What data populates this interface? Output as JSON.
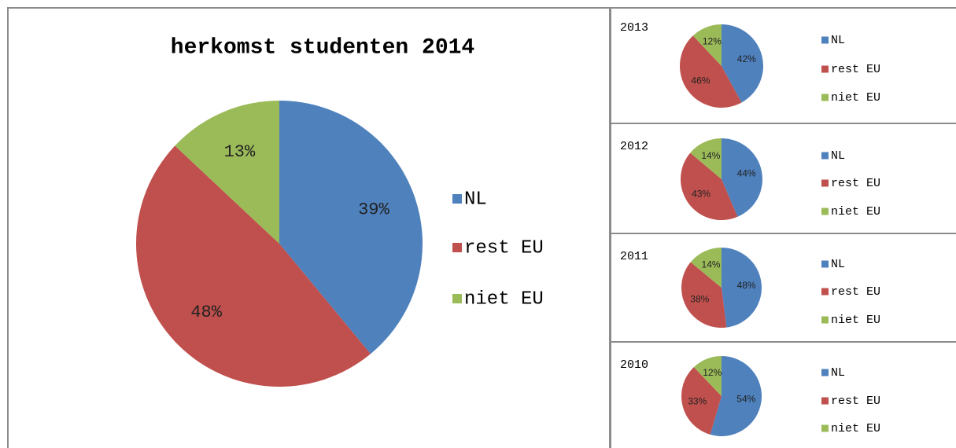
{
  "chart_data": [
    {
      "type": "pie",
      "title": "herkomst studenten 2014",
      "categories": [
        "NL",
        "rest EU",
        "niet EU"
      ],
      "values": [
        39,
        48,
        13
      ],
      "value_labels": [
        "39%",
        "48%",
        "13%"
      ],
      "colors": [
        "#4f81bd",
        "#c0504d",
        "#9bbb59"
      ]
    },
    {
      "type": "pie",
      "title": "2013",
      "categories": [
        "NL",
        "rest EU",
        "niet EU"
      ],
      "values": [
        42,
        46,
        12
      ],
      "value_labels": [
        "42%",
        "46%",
        "12%"
      ],
      "colors": [
        "#4f81bd",
        "#c0504d",
        "#9bbb59"
      ]
    },
    {
      "type": "pie",
      "title": "2012",
      "categories": [
        "NL",
        "rest EU",
        "niet EU"
      ],
      "values": [
        44,
        43,
        14
      ],
      "value_labels": [
        "44%",
        "43%",
        "14%"
      ],
      "colors": [
        "#4f81bd",
        "#c0504d",
        "#9bbb59"
      ]
    },
    {
      "type": "pie",
      "title": "2011",
      "categories": [
        "NL",
        "rest EU",
        "niet EU"
      ],
      "values": [
        48,
        38,
        14
      ],
      "value_labels": [
        "48%",
        "38%",
        "14%"
      ],
      "colors": [
        "#4f81bd",
        "#c0504d",
        "#9bbb59"
      ]
    },
    {
      "type": "pie",
      "title": "2010",
      "categories": [
        "NL",
        "rest EU",
        "niet EU"
      ],
      "values": [
        54,
        33,
        12
      ],
      "value_labels": [
        "54%",
        "33%",
        "12%"
      ],
      "colors": [
        "#4f81bd",
        "#c0504d",
        "#9bbb59"
      ]
    }
  ]
}
